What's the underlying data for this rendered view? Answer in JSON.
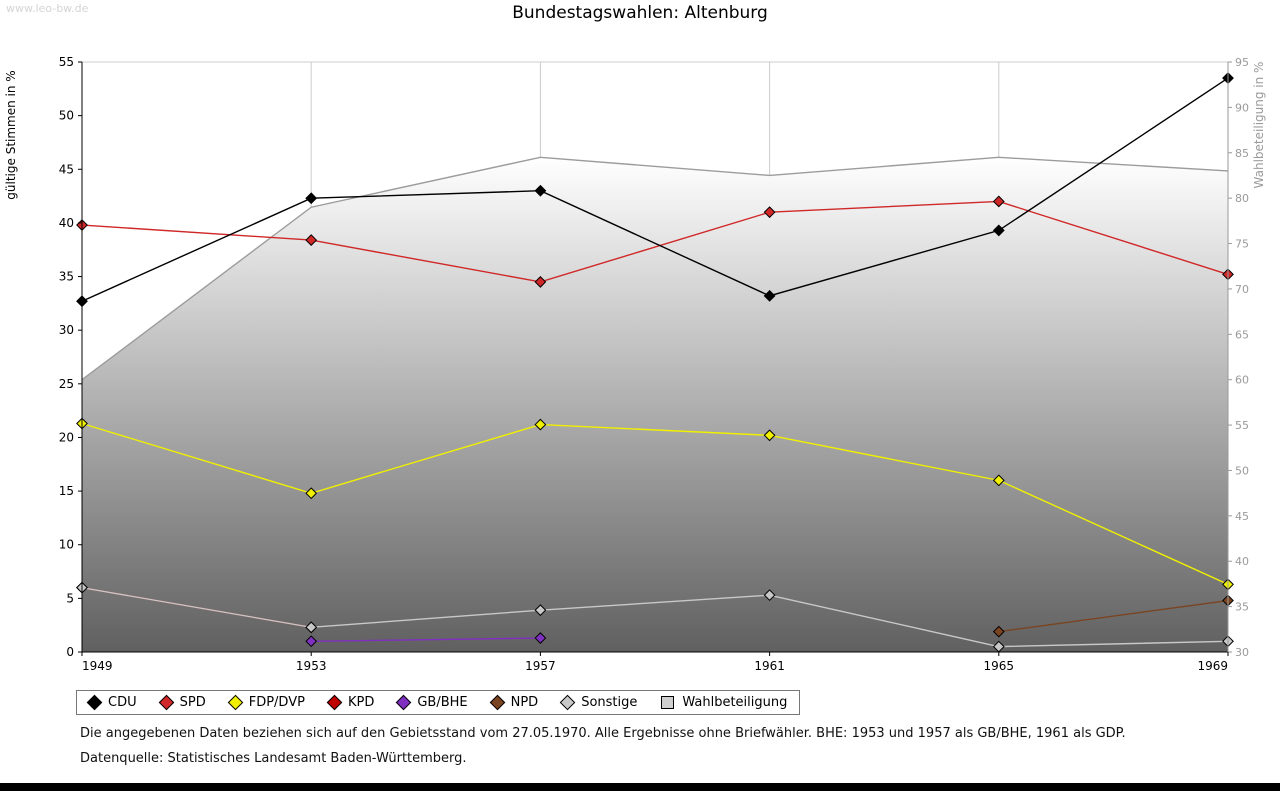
{
  "watermark": "www.leo-bw.de",
  "title": "Bundestagswahlen: Altenburg",
  "left_axis": {
    "label": "gültige Stimmen in %",
    "min": 0,
    "max": 55,
    "step": 5
  },
  "right_axis": {
    "label": "Wahlbeteiligung in %",
    "min": 30,
    "max": 95,
    "step": 5
  },
  "notes": {
    "line1": "Die angegebenen Daten beziehen sich auf den Gebietsstand vom 27.05.1970. Alle Ergebnisse ohne Briefwähler. BHE: 1953 und 1957 als GB/BHE, 1961 als GDP.",
    "line2": "Datenquelle: Statistisches Landesamt Baden-Württemberg."
  },
  "chart_data": {
    "type": "line",
    "title": "Bundestagswahlen: Altenburg",
    "x": [
      1949,
      1953,
      1957,
      1961,
      1965,
      1969
    ],
    "xlabel": "",
    "ylabel_left": "gültige Stimmen in %",
    "ylabel_right": "Wahlbeteiligung in %",
    "ylim_left": [
      0,
      55
    ],
    "ylim_right": [
      30,
      95
    ],
    "grid": "vertical",
    "legend_position": "bottom",
    "series": [
      {
        "name": "CDU",
        "color": "#000000",
        "axis": "left",
        "marker": "diamond",
        "z": 8,
        "values": [
          32.7,
          42.3,
          43.0,
          33.2,
          39.3,
          53.5
        ]
      },
      {
        "name": "SPD",
        "color": "#d02828",
        "axis": "left",
        "marker": "diamond",
        "z": 7,
        "values": [
          39.8,
          38.4,
          34.5,
          41.0,
          42.0,
          35.2
        ]
      },
      {
        "name": "FDP/DVP",
        "color": "#f0f000",
        "axis": "left",
        "marker": "diamond",
        "z": 6,
        "values": [
          21.3,
          14.8,
          21.2,
          20.2,
          16.0,
          6.3
        ]
      },
      {
        "name": "KPD",
        "color": "#c00000",
        "axis": "left",
        "marker": "diamond",
        "z": 2,
        "values": [
          6.0,
          2.3,
          null,
          null,
          null,
          null
        ]
      },
      {
        "name": "GB/BHE",
        "color": "#8030c0",
        "axis": "left",
        "marker": "diamond",
        "z": 3,
        "values": [
          null,
          1.0,
          1.3,
          null,
          null,
          null
        ]
      },
      {
        "name": "NPD",
        "color": "#7a4420",
        "axis": "left",
        "marker": "diamond",
        "z": 4,
        "values": [
          null,
          null,
          null,
          null,
          1.9,
          4.8
        ]
      },
      {
        "name": "Sonstige",
        "color": "#c8c8c8",
        "axis": "left",
        "marker": "diamond",
        "z": 5,
        "values": [
          6.0,
          2.3,
          3.9,
          5.3,
          0.5,
          1.0
        ]
      },
      {
        "name": "Wahlbeteiligung",
        "color": "#9c9c9c",
        "axis": "right",
        "marker": "square",
        "z": 1,
        "type": "area",
        "fill_top": "#ffffff",
        "fill_bottom": "#606060",
        "legend_fill": "#cfcfcf",
        "values": [
          60.0,
          79.0,
          84.5,
          82.5,
          84.5,
          83.0
        ]
      }
    ]
  }
}
